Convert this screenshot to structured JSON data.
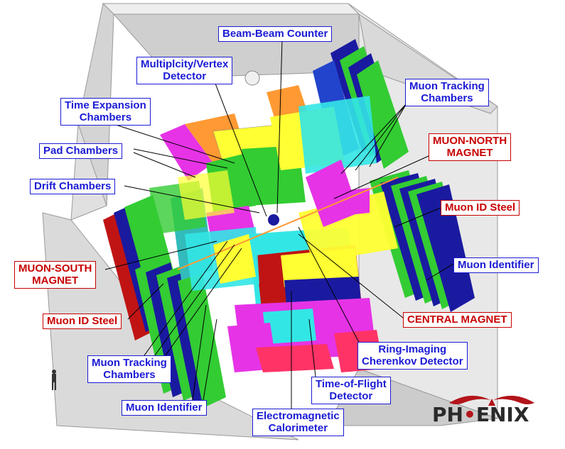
{
  "title": "",
  "colors": {
    "label_blue": "#1b1bd6",
    "label_red": "#c80000",
    "housing": "#d6d6d6",
    "muon_green": "#33cc33",
    "magnet_yellow": "#ffff33",
    "cyan": "#33e6e6",
    "magenta": "#e633e6",
    "orange": "#ff9933",
    "logo_red": "#b3141a"
  },
  "labels": {
    "beam_beam_counter": [
      "Beam-Beam Counter"
    ],
    "multiplicity_vertex": [
      "Multiplcity/Vertex",
      "Detector"
    ],
    "muon_tracking_north": [
      "Muon Tracking",
      "Chambers"
    ],
    "time_expansion": [
      "Time Expansion",
      "Chambers"
    ],
    "muon_north_magnet": [
      "MUON-NORTH",
      "MAGNET"
    ],
    "pad_chambers": [
      "Pad Chambers"
    ],
    "drift_chambers": [
      "Drift Chambers"
    ],
    "muon_id_steel_north": [
      "Muon ID Steel"
    ],
    "muon_south_magnet": [
      "MUON-SOUTH",
      "MAGNET"
    ],
    "muon_identifier_north": [
      "Muon Identifier"
    ],
    "muon_id_steel_south": [
      "Muon ID Steel"
    ],
    "central_magnet": [
      "CENTRAL MAGNET"
    ],
    "rich": [
      "Ring-Imaging",
      "Cherenkov Detector"
    ],
    "muon_tracking_south": [
      "Muon Tracking",
      "Chambers"
    ],
    "time_of_flight": [
      "Time-of-Flight",
      "Detector"
    ],
    "muon_identifier_south": [
      "Muon Identifier"
    ],
    "emcal": [
      "Electromagnetic",
      "Calorimeter"
    ]
  },
  "logo": {
    "pre": "PH",
    "accent": "•",
    "post": "ENIX"
  }
}
